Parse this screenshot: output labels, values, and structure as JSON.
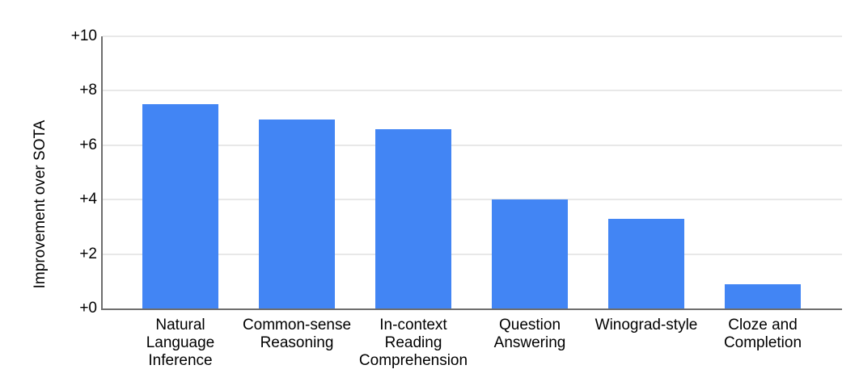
{
  "chart_data": {
    "type": "bar",
    "title": "",
    "xlabel": "",
    "ylabel": "Improvement over SOTA",
    "categories": [
      "Natural Language Inference",
      "Common-sense Reasoning",
      "In-context Reading Comprehension",
      "Question Answering",
      "Winograd-style",
      "Cloze and Completion"
    ],
    "category_lines": [
      [
        "Natural",
        "Language",
        "Inference"
      ],
      [
        "Common-sense",
        "Reasoning"
      ],
      [
        "In-context",
        "Reading",
        "Comprehension"
      ],
      [
        "Question",
        "Answering"
      ],
      [
        "Winograd-style"
      ],
      [
        "Cloze and",
        "Completion"
      ]
    ],
    "values": [
      7.5,
      6.95,
      6.6,
      4.0,
      3.3,
      0.9
    ],
    "ylim": [
      0,
      10
    ],
    "yticks": [
      0,
      2,
      4,
      6,
      8,
      10
    ],
    "ytick_labels": [
      "+0",
      "+2",
      "+4",
      "+6",
      "+8",
      "+10"
    ],
    "grid": true,
    "legend_position": "none",
    "colors": {
      "bar": "#4285f4",
      "gridline": "#e8e8e8",
      "axis_line": "#6e6e6e",
      "text": "#000000",
      "background": "#ffffff"
    }
  }
}
